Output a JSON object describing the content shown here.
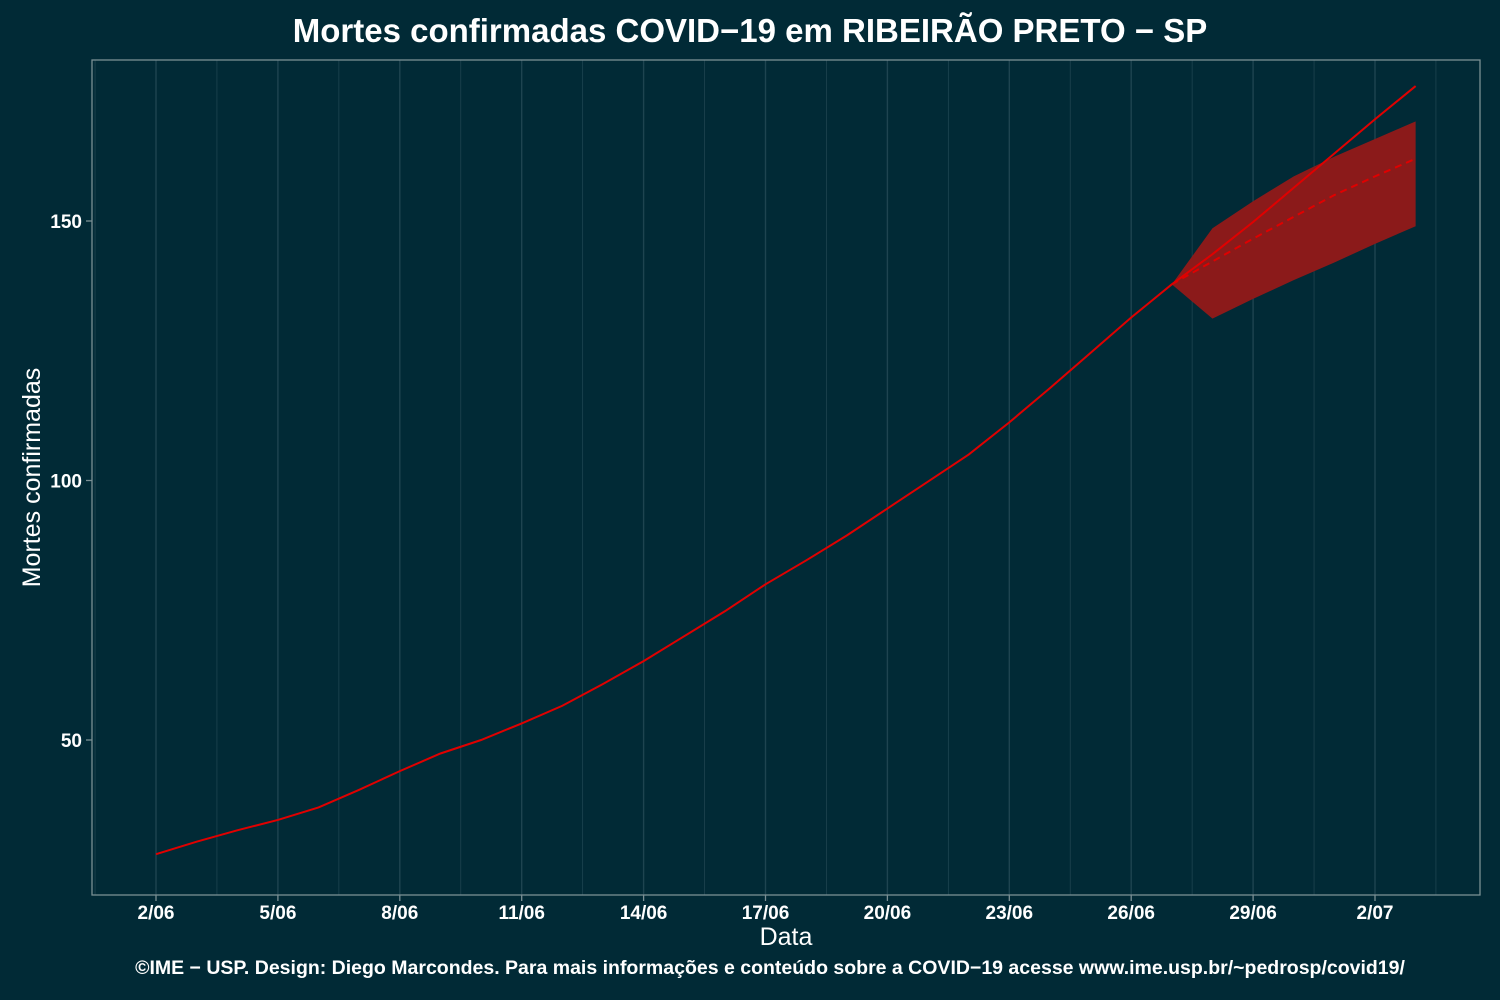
{
  "title": "Mortes confirmadas COVID−19 em RIBEIRÃO PRETO − SP",
  "footer": "©IME − USP. Design: Diego Marcondes. Para mais informações e conteúdo sobre a COVID−19 acesse www.ime.usp.br/~pedrosp/covid19/",
  "colors": {
    "background": "#012a36",
    "line": "#e00000",
    "band": "#8b1a1a",
    "grid": "#1e4450",
    "panel_border": "#7a8f94"
  },
  "chart_data": {
    "type": "line",
    "title": "Mortes confirmadas COVID−19 em RIBEIRÃO PRETO − SP",
    "xlabel": "Data",
    "ylabel": "Mortes confirmadas",
    "x_ticks": [
      "2/06",
      "5/06",
      "8/06",
      "11/06",
      "14/06",
      "17/06",
      "20/06",
      "23/06",
      "26/06",
      "29/06",
      "2/07"
    ],
    "y_ticks": [
      50,
      100,
      150
    ],
    "xlim": [
      "2020-06-01",
      "2020-07-04"
    ],
    "ylim": [
      20,
      180
    ],
    "grid": "vertical",
    "observed": {
      "x": [
        "2020-06-02",
        "2020-06-03",
        "2020-06-04",
        "2020-06-05",
        "2020-06-06",
        "2020-06-07",
        "2020-06-08",
        "2020-06-09",
        "2020-06-10",
        "2020-06-11",
        "2020-06-12",
        "2020-06-13",
        "2020-06-14",
        "2020-06-15",
        "2020-06-16",
        "2020-06-17",
        "2020-06-18",
        "2020-06-19",
        "2020-06-20",
        "2020-06-21",
        "2020-06-22",
        "2020-06-23",
        "2020-06-24",
        "2020-06-25",
        "2020-06-26",
        "2020-06-27"
      ],
      "y": [
        28,
        30.4,
        32.6,
        34.6,
        37,
        40.4,
        44,
        47.4,
        50,
        53.2,
        56.6,
        60.8,
        65.2,
        70,
        74.8,
        80,
        84.6,
        89.4,
        94.6,
        99.8,
        105,
        111.2,
        117.8,
        124.6,
        131.4,
        137.8
      ]
    },
    "projection_upper_line": {
      "x": [
        "2020-06-27",
        "2020-06-28",
        "2020-06-29",
        "2020-06-30",
        "2020-07-01",
        "2020-07-02",
        "2020-07-03"
      ],
      "y": [
        137.8,
        143.6,
        149.8,
        156.4,
        163,
        169.6,
        176
      ]
    },
    "projection_mean": {
      "x": [
        "2020-06-27",
        "2020-06-28",
        "2020-06-29",
        "2020-06-30",
        "2020-07-01",
        "2020-07-02",
        "2020-07-03"
      ],
      "y": [
        137.8,
        142.2,
        146.6,
        150.8,
        155,
        158.6,
        162
      ]
    },
    "projection_band": {
      "x": [
        "2020-06-27",
        "2020-06-28",
        "2020-06-29",
        "2020-06-30",
        "2020-07-01",
        "2020-07-02",
        "2020-07-03"
      ],
      "lower": [
        137.8,
        131.2,
        135,
        138.6,
        142,
        145.6,
        149
      ],
      "upper": [
        137.8,
        148.6,
        153.8,
        158.6,
        162.4,
        165.8,
        169.2
      ]
    }
  }
}
